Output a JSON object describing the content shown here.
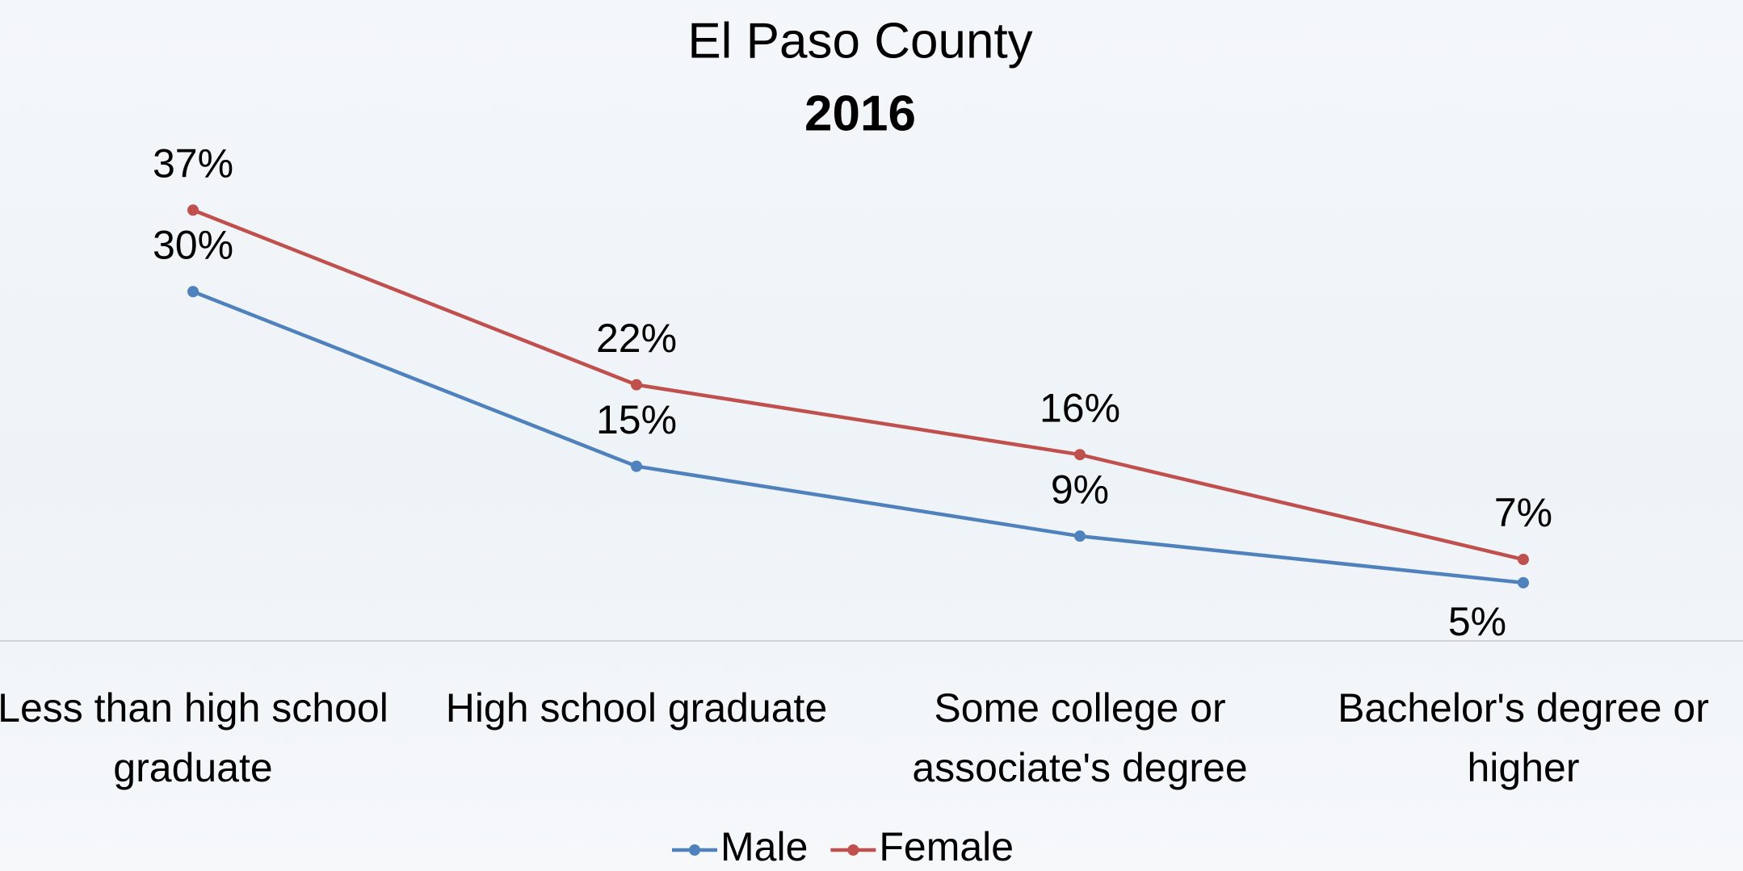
{
  "chart_data": {
    "type": "line",
    "title": "El Paso County",
    "subtitle": "2016",
    "categories": [
      "Less than high school graduate",
      "High school graduate",
      "Some college or associate's degree",
      "Bachelor's degree or higher"
    ],
    "series": [
      {
        "name": "Male",
        "color": "#4f81bd",
        "values": [
          30,
          15,
          9,
          5
        ],
        "value_labels": [
          "30%",
          "15%",
          "9%",
          "5%"
        ]
      },
      {
        "name": "Female",
        "color": "#c0504d",
        "values": [
          37,
          22,
          16,
          7
        ],
        "value_labels": [
          "37%",
          "22%",
          "16%",
          "7%"
        ]
      }
    ],
    "ylim": [
      0,
      40
    ],
    "legend": "bottom"
  }
}
